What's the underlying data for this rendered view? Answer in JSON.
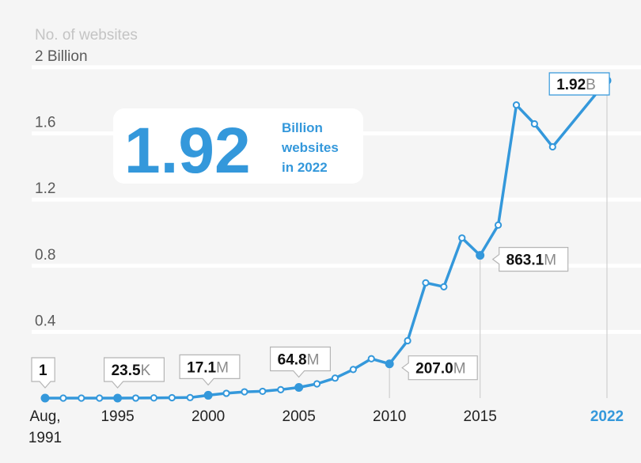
{
  "chart_data": {
    "type": "line",
    "ylabel": "No. of websites",
    "ylim": [
      0,
      2.0
    ],
    "yticks": [
      {
        "value": 0.4,
        "label": "0.4"
      },
      {
        "value": 0.8,
        "label": "0.8"
      },
      {
        "value": 1.2,
        "label": "1.2"
      },
      {
        "value": 1.6,
        "label": "1.6"
      },
      {
        "value": 2.0,
        "label": "2 Billion"
      }
    ],
    "xticks": [
      {
        "value": 1991,
        "label": "Aug,",
        "label2": "1991",
        "highlight": false
      },
      {
        "value": 1995,
        "label": "1995",
        "highlight": false
      },
      {
        "value": 2000,
        "label": "2000",
        "highlight": false
      },
      {
        "value": 2005,
        "label": "2005",
        "highlight": false
      },
      {
        "value": 2010,
        "label": "2010",
        "highlight": false
      },
      {
        "value": 2015,
        "label": "2015",
        "highlight": false
      },
      {
        "value": 2022,
        "label": "2022",
        "highlight": true
      }
    ],
    "x": [
      1991,
      1992,
      1993,
      1994,
      1995,
      1996,
      1997,
      1998,
      1999,
      2000,
      2001,
      2002,
      2003,
      2004,
      2005,
      2006,
      2007,
      2008,
      2009,
      2010,
      2011,
      2012,
      2013,
      2014,
      2015,
      2016,
      2017,
      2018,
      2019,
      2022
    ],
    "values": [
      0,
      0,
      0,
      0,
      2.35e-05,
      0.0003,
      0.0012,
      0.0024,
      0.0032,
      0.0171,
      0.029,
      0.038,
      0.041,
      0.051,
      0.0648,
      0.086,
      0.121,
      0.173,
      0.238,
      0.207,
      0.347,
      0.697,
      0.673,
      0.968,
      0.8631,
      1.046,
      1.772,
      1.658,
      1.519,
      1.92
    ],
    "filled_points": [
      1991,
      1995,
      2000,
      2005,
      2010,
      2015,
      2022
    ],
    "callouts": [
      {
        "year": 1991,
        "num": "1",
        "unit": "",
        "side": "above"
      },
      {
        "year": 1995,
        "num": "23.5",
        "unit": "K",
        "side": "above"
      },
      {
        "year": 2000,
        "num": "17.1",
        "unit": "M",
        "side": "above"
      },
      {
        "year": 2005,
        "num": "64.8",
        "unit": "M",
        "side": "above"
      },
      {
        "year": 2010,
        "num": "207.0",
        "unit": "M",
        "side": "right"
      },
      {
        "year": 2015,
        "num": "863.1",
        "unit": "M",
        "side": "right"
      },
      {
        "year": 2022,
        "num": "1.92",
        "unit": "B",
        "side": "top",
        "accent": true
      }
    ],
    "headline": {
      "number": "1.92",
      "lines": [
        "Billion",
        "websites",
        "in 2022"
      ]
    }
  }
}
